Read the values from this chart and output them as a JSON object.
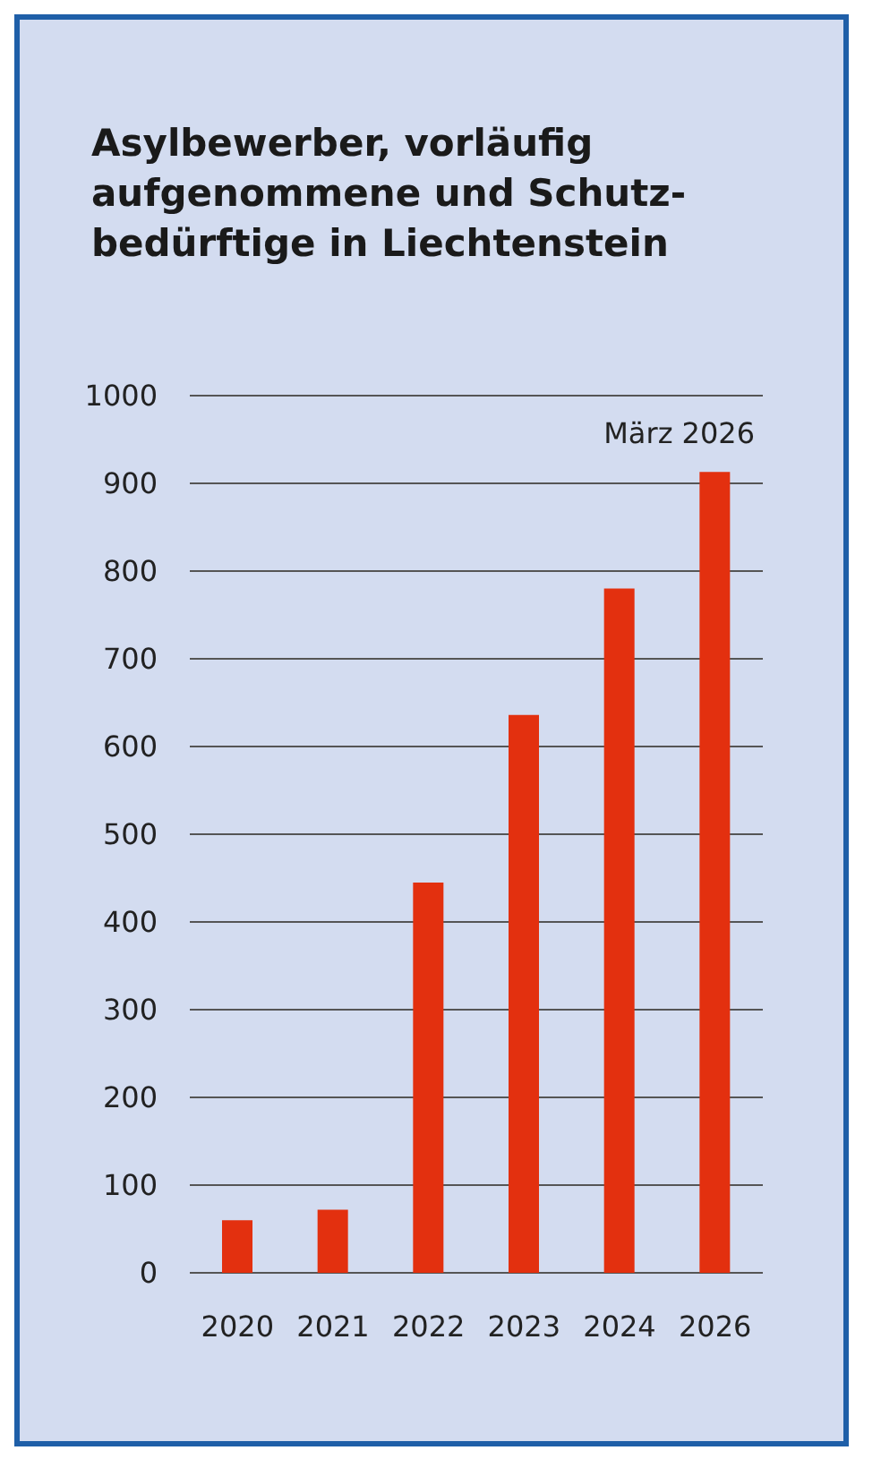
{
  "chart_data": {
    "type": "bar",
    "title": "Asylbewerber, vorläufig aufgenommene und Schutz-bedürftige in Liechtenstein",
    "categories": [
      "2020",
      "2021",
      "2022",
      "2023",
      "2024",
      "2026"
    ],
    "values": [
      60,
      72,
      445,
      636,
      780,
      913
    ],
    "color": "#e3300f",
    "ylim": [
      0,
      1000
    ],
    "yticks": [
      0,
      100,
      200,
      300,
      400,
      500,
      600,
      700,
      800,
      900,
      1000
    ],
    "grid": "y",
    "annotations": [
      {
        "text": "März 2026",
        "x": "2026",
        "y": 913
      }
    ]
  }
}
